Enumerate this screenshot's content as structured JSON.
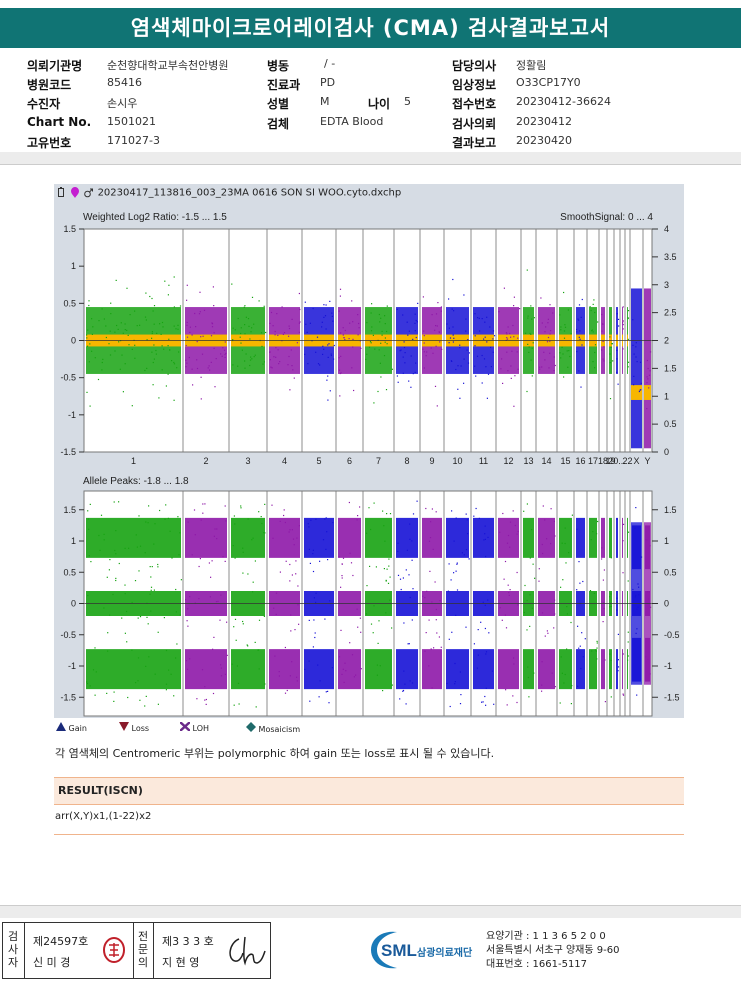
{
  "title": "염색체마이크로어레이검사 (CMA) 검사결과보고서",
  "info": {
    "col1": [
      {
        "label": "의뢰기관명",
        "value": "순천향대학교부속천안병원"
      },
      {
        "label": "병원코드",
        "value": "85416"
      },
      {
        "label": "수진자",
        "value": "손시우"
      },
      {
        "label": "Chart No.",
        "value": "1501021"
      },
      {
        "label": "고유번호",
        "value": "171027-3"
      }
    ],
    "col2": [
      {
        "label": "병동",
        "value": "/ -"
      },
      {
        "label": "진료과",
        "value": "PD"
      },
      {
        "label": "성별",
        "value": "M"
      },
      {
        "label": "검체",
        "value": "EDTA Blood"
      }
    ],
    "age": {
      "label": "나이",
      "value": "5"
    },
    "col3": [
      {
        "label": "담당의사",
        "value": "정활림"
      },
      {
        "label": "임상정보",
        "value": "O33CP17Y0"
      },
      {
        "label": "접수번호",
        "value": "20230412-36624"
      },
      {
        "label": "검사의뢰",
        "value": "20230412"
      },
      {
        "label": "결과보고",
        "value": "20230420"
      }
    ]
  },
  "plot": {
    "file": "20230417_113816_003_23MA 0616 SON SI WOO.cyto.dxchp",
    "top_label": "Weighted Log2 Ratio: -1.5 ... 1.5",
    "top_right_label": "SmoothSignal: 0 ... 4",
    "bottom_label": "Allele Peaks: -1.8 ... 1.8",
    "chromosomes": [
      "1",
      "2",
      "3",
      "4",
      "5",
      "6",
      "7",
      "8",
      "9",
      "10",
      "11",
      "12",
      "13",
      "14",
      "15",
      "16",
      "17",
      "18",
      "19",
      "20",
      "21",
      "22",
      "X",
      "Y"
    ],
    "x_tick_labels": [
      "1",
      "2",
      "3",
      "4",
      "5",
      "6",
      "7",
      "8",
      "9",
      "10",
      "11",
      "12",
      "13",
      "14",
      "15",
      "16",
      "17",
      "18",
      "19",
      "20...",
      "22",
      "X",
      "Y"
    ],
    "top_y_left": [
      "1.5",
      "1",
      "0.5",
      "0",
      "-0.5",
      "-1",
      "-1.5"
    ],
    "top_y_right": [
      "4",
      "3.5",
      "3",
      "2.5",
      "2",
      "1.5",
      "1",
      "0.5",
      "0"
    ],
    "bottom_y": [
      "1.5",
      "1",
      "0.5",
      "0",
      "-0.5",
      "-1",
      "-1.5"
    ]
  },
  "legend": [
    {
      "label": "Gain",
      "color": "#1a2a7a",
      "icon": "triangle-up-icon"
    },
    {
      "label": "Loss",
      "color": "#8a1b2b",
      "icon": "triangle-down-icon"
    },
    {
      "label": "LOH",
      "color": "#6a2a8a",
      "icon": "loh-x-icon"
    },
    {
      "label": "Mosaicism",
      "color": "#1f6a6a",
      "icon": "diamond-icon"
    }
  ],
  "note": "각 염색체의 Centromeric 부위는 polymorphic 하여 gain 또는 loss로 표시 될 수 있습니다.",
  "result": {
    "title": "RESULT(ISCN)",
    "value": "arr(X,Y)x1,(1-22)x2"
  },
  "signatures": {
    "left_label": "검사자",
    "left_no": "제24597호",
    "left_name": "신 미 경",
    "right_label": "전문의",
    "right_no": "제3 3 3 호",
    "right_name": "지 현 영"
  },
  "footer": {
    "brand": "SML",
    "brand_kr": "삼광의료재단",
    "line1": "요양기관 : 1 1 3 6 5 2 0 0",
    "line2": "서울특별시 서초구 양재동 9-60",
    "line3": "대표번호 : 1661-5117"
  },
  "colors": {
    "teal": "#107474",
    "green": "#17a312",
    "purple": "#8e18a8",
    "blue": "#1612d6",
    "orange": "#f7b600",
    "plot_bg": "#d6dce4"
  }
}
